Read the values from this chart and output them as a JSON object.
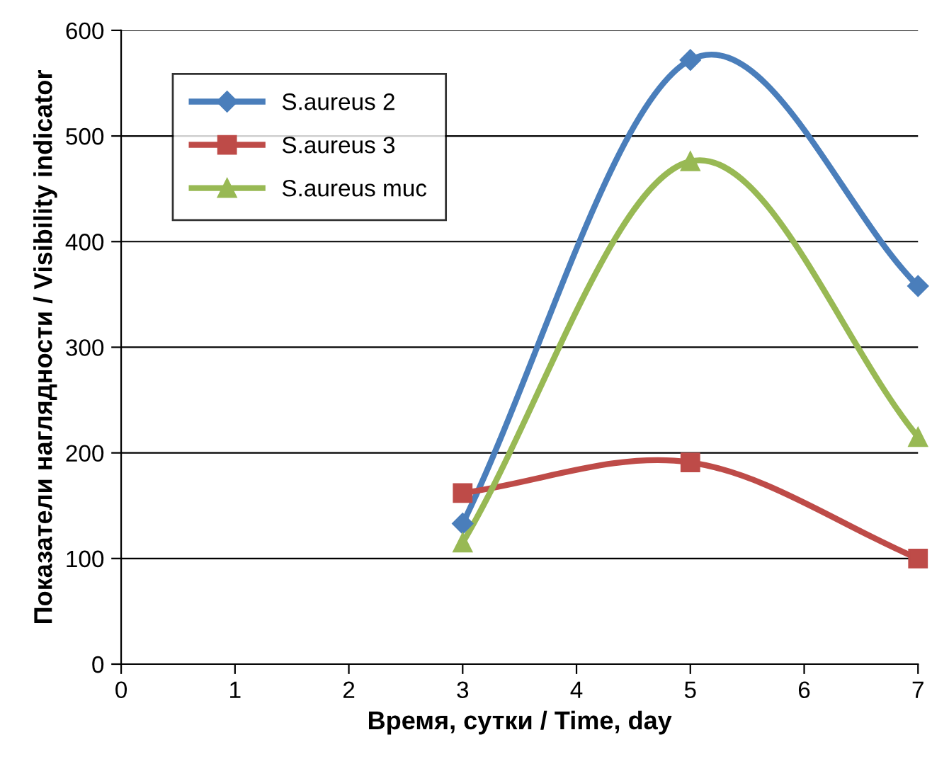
{
  "chart_data": {
    "type": "line",
    "xlabel": "Время, сутки / Time, day",
    "ylabel": "Показатели наглядности / Visibility indicator",
    "xlim": [
      0,
      7
    ],
    "xticks": [
      0,
      1,
      2,
      3,
      4,
      5,
      6,
      7
    ],
    "ylim": [
      0,
      600
    ],
    "yticks": [
      0,
      100,
      200,
      300,
      400,
      500,
      600
    ],
    "grid": "y",
    "legend": "top left",
    "series": [
      {
        "name": "S.aureus 2",
        "color": "#4a7ebb",
        "marker": "diamond",
        "x": [
          3,
          5,
          7
        ],
        "values": [
          133,
          572,
          358
        ]
      },
      {
        "name": "S.aureus 3",
        "color": "#be4b48",
        "marker": "square",
        "x": [
          3,
          5,
          7
        ],
        "values": [
          162,
          191,
          100
        ]
      },
      {
        "name": "S.aureus muc",
        "color": "#98b954",
        "marker": "triangle",
        "x": [
          3,
          5,
          7
        ],
        "values": [
          115,
          476,
          215
        ]
      }
    ]
  }
}
